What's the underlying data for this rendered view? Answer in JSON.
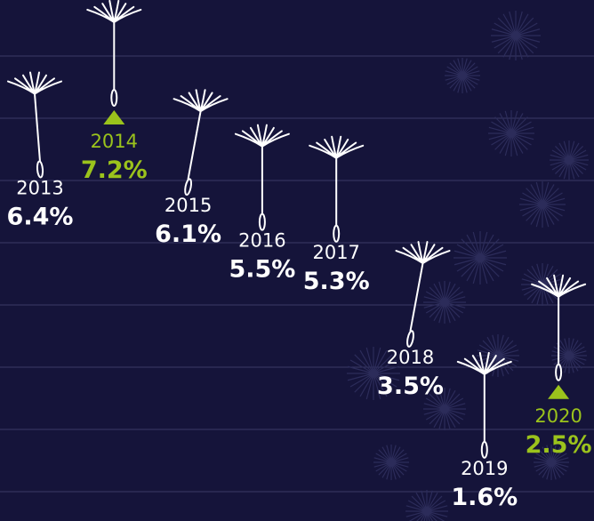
{
  "chart_data": {
    "type": "seed",
    "categories": [
      "2013",
      "2014",
      "2015",
      "2016",
      "2017",
      "2018",
      "2019",
      "2020"
    ],
    "values": [
      6.4,
      7.2,
      6.1,
      5.5,
      5.3,
      3.5,
      1.6,
      2.5
    ],
    "value_labels": [
      "6.4%",
      "7.2%",
      "6.1%",
      "5.5%",
      "5.3%",
      "3.5%",
      "1.6%",
      "2.5%"
    ],
    "colors": [
      "#ffffff",
      "#9bc31c",
      "#ffffff",
      "#ffffff",
      "#ffffff",
      "#ffffff",
      "#ffffff",
      "#9bc31c"
    ]
  }
}
